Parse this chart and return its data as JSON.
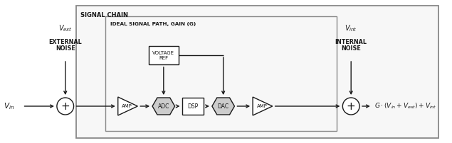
{
  "bg_color": "#ffffff",
  "bg_outer": "#f5f5f5",
  "line_color": "#1a1a1a",
  "gray_color": "#888888",
  "signal_chain_label": "SIGNAL CHAIN",
  "ideal_path_label": "IDEAL SIGNAL PATH, GAIN (G)",
  "voltage_ref_label": "VOLTAGE\nREF",
  "output_label": "G · (V_in + V_ext) + V_int",
  "adc_dac_fill": "#cccccc",
  "amp_fill": "#ffffff",
  "circle_fill": "#ffffff"
}
